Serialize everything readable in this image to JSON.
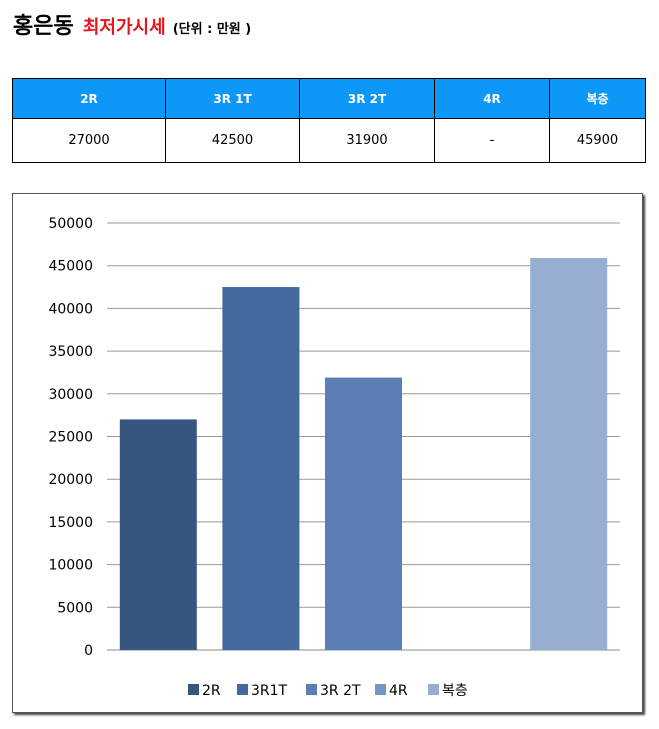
{
  "header": {
    "title": "홍은동",
    "subtitle": "최저가시세",
    "unit": "(단위 : 만원 )"
  },
  "table": {
    "columns": [
      "2R",
      "3R 1T",
      "3R 2T",
      "4R",
      "복층"
    ],
    "values": [
      "27000",
      "42500",
      "31900",
      "-",
      "45900"
    ]
  },
  "chart_data": {
    "type": "bar",
    "series": [
      {
        "name": "2R",
        "value": 27000,
        "color": "#36557f"
      },
      {
        "name": "3R1T",
        "value": 42500,
        "color": "#43699f"
      },
      {
        "name": "3R 2T",
        "value": 31900,
        "color": "#5b7fb5"
      },
      {
        "name": "4R",
        "value": null,
        "color": "#7595c6"
      },
      {
        "name": "복층",
        "value": 45900,
        "color": "#97aed2"
      }
    ],
    "ylim": [
      0,
      50000
    ],
    "yticks": [
      "0",
      "5000",
      "10000",
      "15000",
      "20000",
      "25000",
      "30000",
      "35000",
      "40000",
      "45000",
      "50000"
    ],
    "grid": true,
    "legend_position": "bottom"
  }
}
